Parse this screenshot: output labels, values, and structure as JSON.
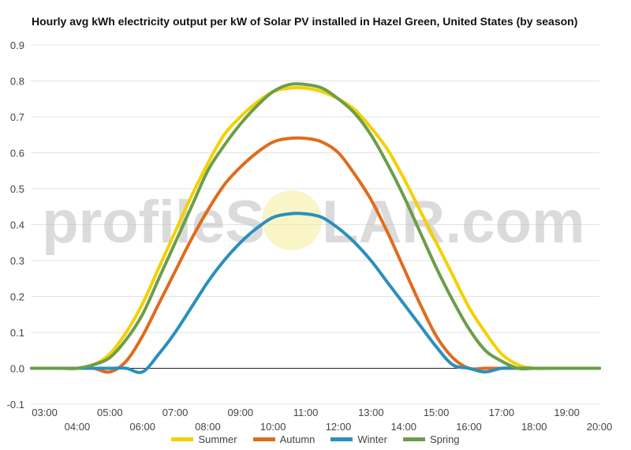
{
  "chart_data": {
    "type": "line",
    "title": "Hourly avg kWh electricity output per kW of Solar PV installed in Hazel Green, United States (by season)",
    "watermark": {
      "left": "profileS",
      "right": "LAR.com"
    },
    "ylim": [
      -0.1,
      0.9
    ],
    "y_ticks": [
      "-0.1",
      "0.0",
      "0.1",
      "0.2",
      "0.3",
      "0.4",
      "0.5",
      "0.6",
      "0.7",
      "0.8",
      "0.9"
    ],
    "y_tick_values": [
      -0.1,
      0.0,
      0.1,
      0.2,
      0.3,
      0.4,
      0.5,
      0.6,
      0.7,
      0.8,
      0.9
    ],
    "xlim": [
      2.6,
      20.0
    ],
    "x_ticks": [
      "03:00",
      "04:00",
      "05:00",
      "06:00",
      "07:00",
      "08:00",
      "09:00",
      "10:00",
      "11:00",
      "12:00",
      "13:00",
      "14:00",
      "15:00",
      "16:00",
      "17:00",
      "18:00",
      "19:00",
      "20:00"
    ],
    "x_tick_values": [
      3,
      4,
      5,
      6,
      7,
      8,
      9,
      10,
      11,
      12,
      13,
      14,
      15,
      16,
      17,
      18,
      19,
      20
    ],
    "grid": true,
    "legend_position": "bottom",
    "x": [
      2.6,
      3.0,
      3.5,
      4.0,
      4.5,
      5.0,
      5.5,
      6.0,
      6.5,
      7.0,
      7.5,
      8.0,
      8.5,
      9.0,
      9.5,
      10.0,
      10.5,
      11.0,
      11.5,
      12.0,
      12.5,
      13.0,
      13.5,
      14.0,
      14.5,
      15.0,
      15.5,
      16.0,
      16.5,
      17.0,
      17.5,
      18.0,
      18.5,
      19.0,
      19.5,
      20.0
    ],
    "series": [
      {
        "name": "Summer",
        "color": "#f5d000",
        "values": [
          0.0,
          0.0,
          0.0,
          0.0,
          0.01,
          0.04,
          0.1,
          0.18,
          0.28,
          0.38,
          0.48,
          0.57,
          0.65,
          0.7,
          0.74,
          0.77,
          0.78,
          0.78,
          0.77,
          0.75,
          0.72,
          0.67,
          0.61,
          0.53,
          0.44,
          0.35,
          0.26,
          0.17,
          0.1,
          0.04,
          0.01,
          0.0,
          0.0,
          0.0,
          0.0,
          0.0
        ]
      },
      {
        "name": "Autumn",
        "color": "#e06c1c",
        "values": [
          0.0,
          0.0,
          0.0,
          0.0,
          0.0,
          -0.01,
          0.02,
          0.09,
          0.18,
          0.27,
          0.36,
          0.44,
          0.51,
          0.56,
          0.6,
          0.63,
          0.64,
          0.64,
          0.63,
          0.6,
          0.54,
          0.47,
          0.38,
          0.28,
          0.18,
          0.09,
          0.03,
          0.0,
          0.0,
          0.0,
          0.0,
          0.0,
          0.0,
          0.0,
          0.0,
          0.0
        ]
      },
      {
        "name": "Winter",
        "color": "#2a8fbd",
        "values": [
          0.0,
          0.0,
          0.0,
          0.0,
          0.0,
          0.0,
          0.0,
          -0.01,
          0.04,
          0.1,
          0.17,
          0.24,
          0.3,
          0.35,
          0.39,
          0.42,
          0.43,
          0.43,
          0.42,
          0.39,
          0.35,
          0.3,
          0.24,
          0.18,
          0.12,
          0.06,
          0.01,
          0.0,
          -0.01,
          0.0,
          0.0,
          0.0,
          0.0,
          0.0,
          0.0,
          0.0
        ]
      },
      {
        "name": "Spring",
        "color": "#6b9e4a",
        "values": [
          0.0,
          0.0,
          0.0,
          0.0,
          0.01,
          0.03,
          0.08,
          0.15,
          0.25,
          0.35,
          0.45,
          0.55,
          0.62,
          0.68,
          0.73,
          0.77,
          0.79,
          0.79,
          0.78,
          0.75,
          0.71,
          0.65,
          0.57,
          0.48,
          0.38,
          0.28,
          0.19,
          0.11,
          0.05,
          0.02,
          0.0,
          0.0,
          0.0,
          0.0,
          0.0,
          0.0
        ]
      }
    ]
  }
}
